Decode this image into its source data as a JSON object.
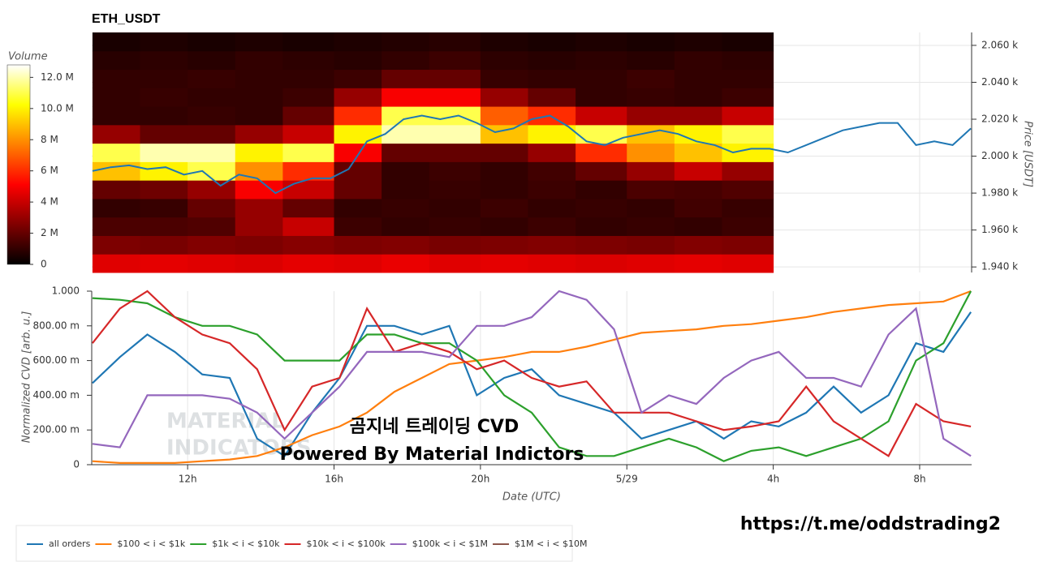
{
  "chart_data": [
    {
      "type": "heatmap",
      "title": "ETH_USDT",
      "x_bins": [
        9.4,
        10.7,
        12,
        13.3,
        14.6,
        16,
        17.3,
        18.6,
        20,
        21.3,
        22.6,
        24,
        25.3,
        26.6,
        28
      ],
      "y_bins": [
        1937,
        1947,
        1957,
        1967,
        1977,
        1987,
        1997,
        2007,
        2017,
        2027,
        2037,
        2047,
        2057,
        2067
      ],
      "z": [
        [
          4.5,
          4.6,
          4.5,
          4.4,
          4.6,
          4.5,
          4.7,
          4.5,
          4.6,
          4.5,
          4.4,
          4.5,
          4.6,
          4.5
        ],
        [
          2.5,
          2.4,
          2.6,
          2.5,
          2.7,
          2.5,
          2.6,
          2.4,
          2.5,
          2.6,
          2.5,
          2.4,
          2.6,
          2.5
        ],
        [
          1.5,
          1.5,
          1.6,
          3.0,
          4.0,
          1.2,
          1.0,
          1.1,
          1.0,
          1.2,
          1.0,
          1.1,
          1.0,
          1.2
        ],
        [
          1.0,
          1.1,
          2.0,
          3.0,
          2.0,
          1.0,
          1.1,
          1.0,
          1.2,
          1.0,
          1.1,
          1.0,
          1.3,
          1.1
        ],
        [
          2.0,
          2.2,
          3.0,
          5.0,
          4.0,
          2.0,
          1.0,
          1.1,
          1.0,
          1.2,
          1.0,
          1.5,
          1.4,
          1.6
        ],
        [
          9.0,
          10.0,
          11.0,
          8.0,
          6.0,
          2.0,
          1.0,
          1.2,
          1.0,
          1.3,
          2.0,
          3.0,
          4.0,
          3.0
        ],
        [
          11.0,
          12.0,
          12.0,
          10.0,
          11.0,
          5.0,
          2.0,
          2.0,
          2.0,
          3.0,
          6.0,
          8.0,
          9.0,
          10.0
        ],
        [
          3.0,
          2.0,
          2.0,
          3.0,
          4.0,
          10.0,
          12.0,
          12.0,
          9.0,
          10.0,
          11.0,
          9.0,
          10.0,
          11.0
        ],
        [
          1.0,
          1.0,
          1.1,
          1.0,
          2.0,
          6.0,
          11.0,
          11.0,
          7.0,
          6.0,
          4.0,
          3.0,
          3.0,
          4.0
        ],
        [
          1.0,
          1.1,
          1.0,
          1.0,
          1.2,
          3.0,
          5.0,
          5.0,
          3.0,
          2.0,
          1.0,
          1.1,
          1.0,
          1.2
        ],
        [
          1.0,
          1.0,
          1.1,
          1.0,
          1.0,
          1.2,
          2.0,
          2.0,
          1.1,
          1.0,
          1.0,
          1.2,
          1.0,
          1.0
        ],
        [
          0.8,
          0.9,
          0.8,
          1.0,
          0.9,
          0.8,
          1.0,
          1.2,
          0.9,
          0.8,
          0.9,
          0.8,
          1.0,
          0.9
        ],
        [
          0.5,
          0.6,
          0.5,
          0.6,
          0.5,
          0.6,
          0.7,
          0.8,
          0.6,
          0.5,
          0.6,
          0.5,
          0.6,
          0.5
        ]
      ],
      "colorscale": [
        "#000000",
        "#800000",
        "#ff0000",
        "#ff8000",
        "#ffff00",
        "#ffffff"
      ],
      "colorbar": {
        "title": "Volume",
        "lim": [
          0,
          12.8
        ],
        "ticks": [
          0,
          {
            "value": 2,
            "label": "2 M"
          },
          {
            "value": 4,
            "label": "4 M"
          },
          {
            "value": 6,
            "label": "6 M"
          },
          {
            "value": 8,
            "label": "8 M"
          },
          {
            "value": 10,
            "label": "10.0 M"
          },
          {
            "value": 12,
            "label": "12.0 M"
          }
        ]
      },
      "price": {
        "color": "#1f77b4",
        "x": [
          9.4,
          9.9,
          10.4,
          10.9,
          11.4,
          11.9,
          12.4,
          12.9,
          13.4,
          13.9,
          14.4,
          14.9,
          15.4,
          15.9,
          16.4,
          16.9,
          17.4,
          17.9,
          18.4,
          18.9,
          19.4,
          19.9,
          20.4,
          20.9,
          21.4,
          21.9,
          22.4,
          22.9,
          23.4,
          23.9,
          24.4,
          24.9,
          25.4,
          25.9,
          26.4,
          26.9,
          27.4,
          27.9,
          28.4,
          28.9,
          29.4,
          29.9,
          30.4,
          30.9,
          31.4,
          31.9,
          32.4,
          32.9,
          33.4
        ],
        "values": [
          1992,
          1994,
          1995,
          1993,
          1994,
          1990,
          1992,
          1984,
          1990,
          1988,
          1980,
          1985,
          1988,
          1988,
          1993,
          2008,
          2012,
          2020,
          2022,
          2020,
          2022,
          2018,
          2013,
          2015,
          2020,
          2022,
          2016,
          2008,
          2006,
          2010,
          2012,
          2014,
          2012,
          2008,
          2006,
          2002,
          2004,
          2004,
          2002,
          2006,
          2010,
          2014,
          2016,
          2018,
          2018,
          2006,
          2008,
          2006,
          2015
        ]
      },
      "ylabel": "Price [USDT]",
      "xlim": [
        9.38,
        33.42
      ],
      "xticks": [
        12,
        16,
        20,
        24,
        28,
        32
      ],
      "ylim": [
        1937,
        2067
      ],
      "yticks": [
        {
          "value": 1940,
          "label": "1.940 k"
        },
        {
          "value": 1960,
          "label": "1.960 k"
        },
        {
          "value": 1980,
          "label": "1.980 k"
        },
        {
          "value": 2000,
          "label": "2.000 k"
        },
        {
          "value": 2020,
          "label": "2.020 k"
        },
        {
          "value": 2040,
          "label": "2.040 k"
        },
        {
          "value": 2060,
          "label": "2.060 k"
        }
      ],
      "grid": true
    },
    {
      "type": "line",
      "xlabel": "Date (UTC)",
      "ylabel": "Normalized CVD [arb. u.]",
      "x": [
        9.4,
        10.15,
        10.9,
        11.65,
        12.4,
        13.15,
        13.9,
        14.65,
        15.4,
        16.15,
        16.9,
        17.65,
        18.4,
        19.15,
        19.9,
        20.65,
        21.4,
        22.15,
        22.9,
        23.65,
        24.4,
        25.15,
        25.9,
        26.65,
        27.4,
        28.15,
        28.9,
        29.65,
        30.4,
        31.15,
        31.9,
        32.65,
        33.4
      ],
      "series": [
        {
          "name": "all orders",
          "color": "#1f77b4",
          "values": [
            0.47,
            0.62,
            0.75,
            0.65,
            0.52,
            0.5,
            0.15,
            0.05,
            0.3,
            0.5,
            0.8,
            0.8,
            0.75,
            0.8,
            0.4,
            0.5,
            0.55,
            0.4,
            0.35,
            0.3,
            0.15,
            0.2,
            0.25,
            0.15,
            0.25,
            0.22,
            0.3,
            0.45,
            0.3,
            0.4,
            0.7,
            0.65,
            0.88
          ]
        },
        {
          "name": "$100 < i < $1k",
          "color": "#ff7f0e",
          "values": [
            0.02,
            0.01,
            0.01,
            0.01,
            0.02,
            0.03,
            0.05,
            0.1,
            0.17,
            0.22,
            0.3,
            0.42,
            0.5,
            0.58,
            0.6,
            0.62,
            0.65,
            0.65,
            0.68,
            0.72,
            0.76,
            0.77,
            0.78,
            0.8,
            0.81,
            0.83,
            0.85,
            0.88,
            0.9,
            0.92,
            0.93,
            0.94,
            1.0
          ]
        },
        {
          "name": "$1k < i < $10k",
          "color": "#2ca02c",
          "values": [
            0.96,
            0.95,
            0.93,
            0.85,
            0.8,
            0.8,
            0.75,
            0.6,
            0.6,
            0.6,
            0.75,
            0.75,
            0.7,
            0.7,
            0.6,
            0.4,
            0.3,
            0.1,
            0.05,
            0.05,
            0.1,
            0.15,
            0.1,
            0.02,
            0.08,
            0.1,
            0.05,
            0.1,
            0.15,
            0.25,
            0.6,
            0.7,
            1.0
          ]
        },
        {
          "name": "$10k < i < $100k",
          "color": "#d62728",
          "values": [
            0.7,
            0.9,
            1.0,
            0.85,
            0.75,
            0.7,
            0.55,
            0.2,
            0.45,
            0.5,
            0.9,
            0.65,
            0.7,
            0.65,
            0.55,
            0.6,
            0.5,
            0.45,
            0.48,
            0.3,
            0.3,
            0.3,
            0.25,
            0.2,
            0.22,
            0.25,
            0.45,
            0.25,
            0.15,
            0.05,
            0.35,
            0.25,
            0.22
          ]
        },
        {
          "name": "$100k < i < $1M",
          "color": "#9467bd",
          "values": [
            0.12,
            0.1,
            0.4,
            0.4,
            0.4,
            0.38,
            0.3,
            0.15,
            0.3,
            0.45,
            0.65,
            0.65,
            0.65,
            0.62,
            0.8,
            0.8,
            0.85,
            1.0,
            0.95,
            0.78,
            0.3,
            0.4,
            0.35,
            0.5,
            0.6,
            0.65,
            0.5,
            0.5,
            0.45,
            0.75,
            0.9,
            0.15,
            0.05
          ]
        },
        {
          "name": "$1M < i < $10M",
          "color": "#8c564b",
          "values": [
            null,
            null,
            null,
            null,
            null,
            null,
            null,
            null,
            null,
            null,
            null,
            null,
            null,
            null,
            null,
            null,
            null,
            null,
            null,
            null,
            null,
            null,
            null,
            null,
            null,
            null,
            null,
            null,
            null,
            null,
            null,
            null,
            null
          ]
        }
      ],
      "xlim": [
        9.38,
        33.42
      ],
      "xticks": [
        {
          "value": 12,
          "label": "12h"
        },
        {
          "value": 16,
          "label": "16h"
        },
        {
          "value": 20,
          "label": "20h"
        },
        {
          "value": 24,
          "label": "5/29"
        },
        {
          "value": 28,
          "label": "4h"
        },
        {
          "value": 32,
          "label": "8h"
        }
      ],
      "ylim": [
        0,
        1
      ],
      "yticks": [
        0,
        {
          "value": 0.2,
          "label": "200.00 m"
        },
        {
          "value": 0.4,
          "label": "400.00 m"
        },
        {
          "value": 0.6,
          "label": "600.00 m"
        },
        {
          "value": 0.8,
          "label": "800.00 m"
        },
        {
          "value": 1,
          "label": "1.000"
        }
      ],
      "grid": true,
      "annotations": [
        "곰지네 트레이딩 CVD",
        "Powered By Material Indictors"
      ],
      "watermark": [
        "MATERIAL",
        "INDICATORS"
      ]
    }
  ],
  "footer_url": "https://t.me/oddstrading2"
}
